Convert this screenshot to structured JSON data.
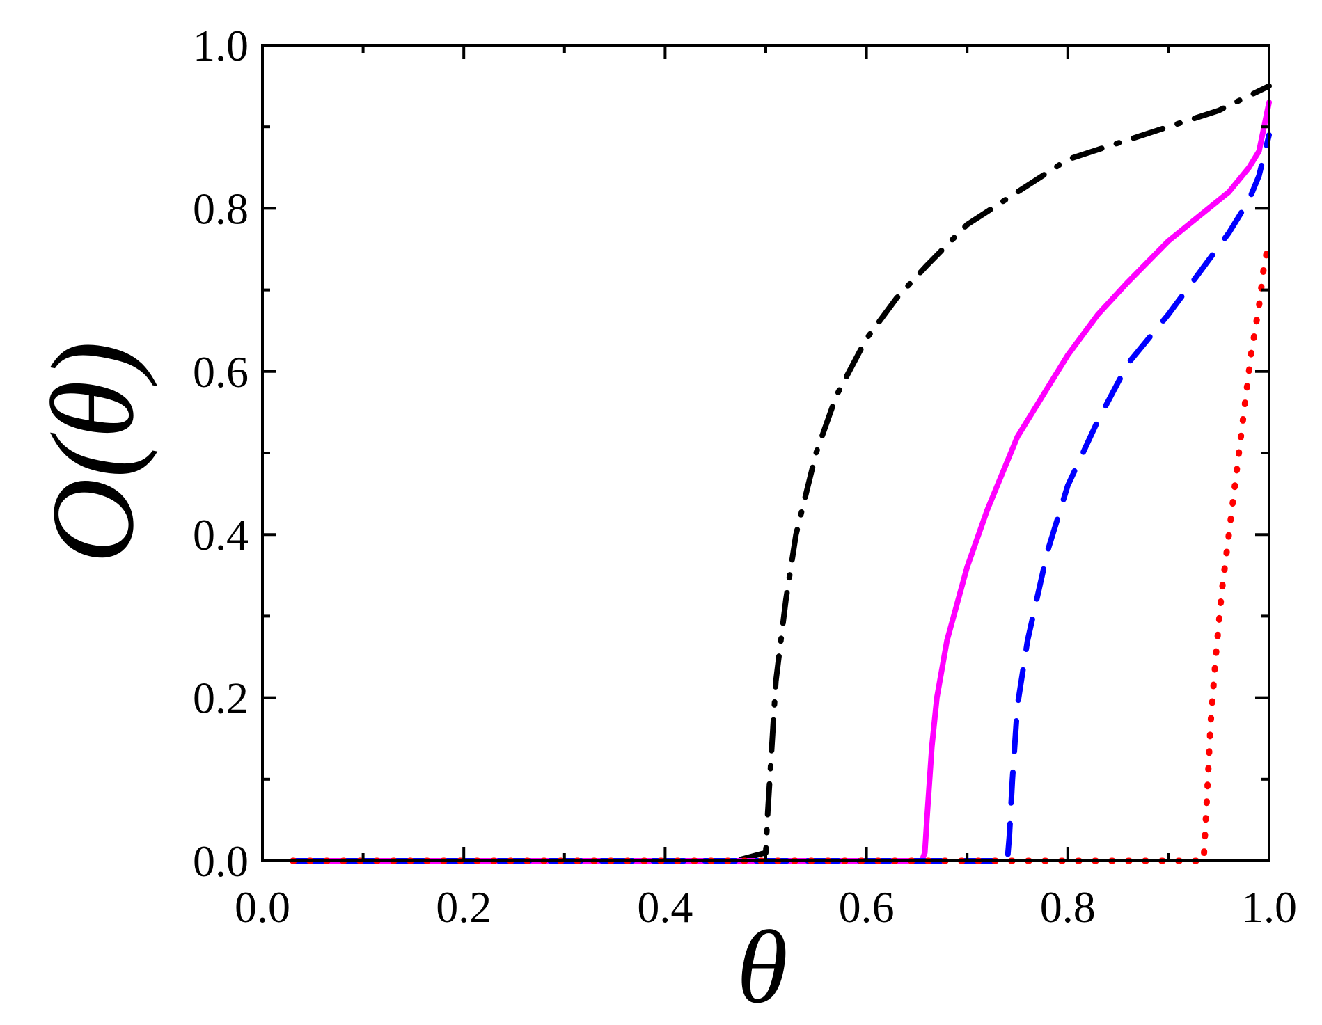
{
  "chart_data": {
    "type": "line",
    "xlabel": "θ",
    "ylabel": "O(θ)",
    "xlim": [
      0.0,
      1.0
    ],
    "ylim": [
      0.0,
      1.0
    ],
    "xticks": [
      "0.0",
      "0.2",
      "0.4",
      "0.6",
      "0.8",
      "1.0"
    ],
    "yticks": [
      "0.0",
      "0.2",
      "0.4",
      "0.6",
      "0.8",
      "1.0"
    ],
    "grid": false,
    "legend": "none",
    "series": [
      {
        "color": "#000000",
        "style": "dash-dot",
        "x": [
          0.03,
          0.47,
          0.5,
          0.502,
          0.51,
          0.52,
          0.53,
          0.55,
          0.57,
          0.6,
          0.63,
          0.66,
          0.7,
          0.75,
          0.8,
          0.85,
          0.9,
          0.95,
          1.0
        ],
        "y": [
          0.0,
          0.0,
          0.01,
          0.06,
          0.22,
          0.32,
          0.4,
          0.5,
          0.57,
          0.64,
          0.69,
          0.73,
          0.78,
          0.82,
          0.86,
          0.88,
          0.9,
          0.92,
          0.95
        ]
      },
      {
        "color": "#ff00ff",
        "style": "solid",
        "x": [
          0.03,
          0.655,
          0.658,
          0.66,
          0.665,
          0.67,
          0.68,
          0.7,
          0.72,
          0.75,
          0.78,
          0.8,
          0.83,
          0.86,
          0.9,
          0.93,
          0.96,
          0.98,
          0.99,
          1.0
        ],
        "y": [
          0.0,
          0.0,
          0.01,
          0.05,
          0.14,
          0.2,
          0.27,
          0.36,
          0.43,
          0.52,
          0.58,
          0.62,
          0.67,
          0.71,
          0.76,
          0.79,
          0.82,
          0.85,
          0.87,
          0.93
        ]
      },
      {
        "color": "#0000ff",
        "style": "dashed",
        "x": [
          0.03,
          0.74,
          0.742,
          0.745,
          0.75,
          0.76,
          0.78,
          0.8,
          0.83,
          0.86,
          0.9,
          0.93,
          0.96,
          0.98,
          0.99,
          1.0
        ],
        "y": [
          0.0,
          0.0,
          0.03,
          0.1,
          0.19,
          0.27,
          0.38,
          0.46,
          0.54,
          0.61,
          0.67,
          0.72,
          0.77,
          0.81,
          0.84,
          0.89
        ]
      },
      {
        "color": "#ff0000",
        "style": "dotted",
        "x": [
          0.03,
          0.935,
          0.938,
          0.942,
          0.947,
          0.953,
          0.96,
          0.967,
          0.975,
          0.982,
          0.99,
          0.995,
          1.0
        ],
        "y": [
          0.0,
          0.0,
          0.07,
          0.17,
          0.25,
          0.33,
          0.4,
          0.47,
          0.55,
          0.62,
          0.68,
          0.73,
          0.76
        ]
      }
    ]
  }
}
